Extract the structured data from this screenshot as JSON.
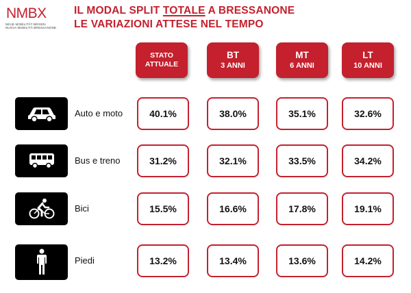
{
  "logo": {
    "text": "NMBX",
    "subtitle_line1": "Neue Mobilität Brixen",
    "subtitle_line2": "Nuova Mobilità Bressanone",
    "color": "#c4202e"
  },
  "title": {
    "line1_before": "IL MODAL SPLIT ",
    "line1_underlined": "TOTALE",
    "line1_after": " A BRESSANONE",
    "line2": "LE VARIAZIONI ATTESE NEL TEMPO",
    "color": "#c4202e"
  },
  "columns": [
    {
      "line1": "STATO",
      "line2": "ATTUALE"
    },
    {
      "line1": "BT",
      "line2": "3 ANNI"
    },
    {
      "line1": "MT",
      "line2": "6 ANNI"
    },
    {
      "line1": "LT",
      "line2": "10 ANNI"
    }
  ],
  "rows": [
    {
      "label": "Auto e moto",
      "icon": "car-icon",
      "values": [
        "40.1%",
        "38.0%",
        "35.1%",
        "32.6%"
      ]
    },
    {
      "label": "Bus e treno",
      "icon": "bus-icon",
      "values": [
        "31.2%",
        "32.1%",
        "33.5%",
        "34.2%"
      ]
    },
    {
      "label": "Bici",
      "icon": "bicycle-icon",
      "values": [
        "15.5%",
        "16.6%",
        "17.8%",
        "19.1%"
      ]
    },
    {
      "label": "Piedi",
      "icon": "pedestrian-icon",
      "values": [
        "13.2%",
        "13.4%",
        "13.6%",
        "14.2%"
      ]
    }
  ]
}
